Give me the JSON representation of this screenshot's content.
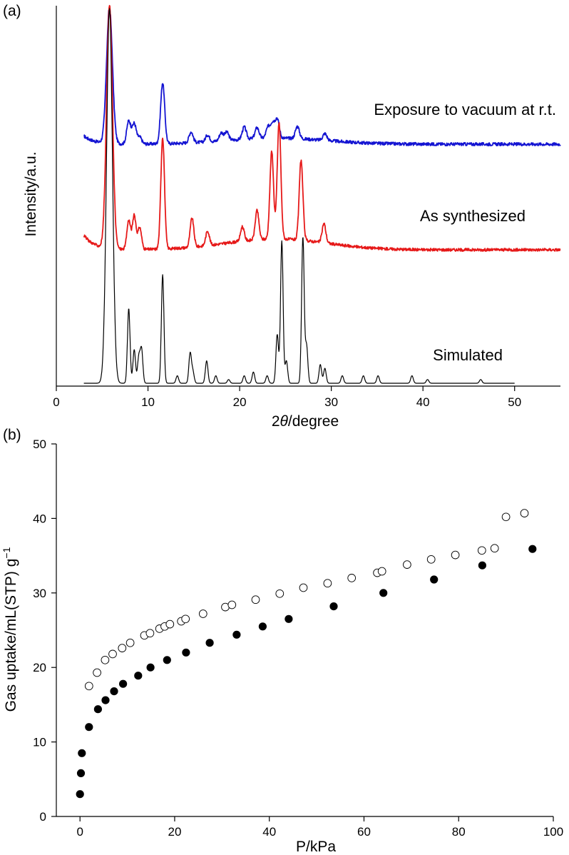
{
  "chart_data": [
    {
      "panel_label": "(a)",
      "type": "line",
      "xlabel": "2θ/degree",
      "xlabel_parts": {
        "var": "θ",
        "prefix": "2",
        "suffix": "/degree"
      },
      "ylabel": "Intensity/a.u.",
      "xlim": [
        0,
        55
      ],
      "xticks": [
        "0",
        "10",
        "20",
        "30",
        "40",
        "50"
      ],
      "yticks": [],
      "series": [
        {
          "name": "Exposure to vacuum at r.t.",
          "color": "#1414d2",
          "peaks": [
            [
              5.8,
              1.0
            ],
            [
              7.9,
              0.17
            ],
            [
              8.5,
              0.15
            ],
            [
              9.1,
              0.05
            ],
            [
              11.6,
              0.45
            ],
            [
              14.7,
              0.08
            ],
            [
              16.5,
              0.05
            ],
            [
              18.0,
              0.06
            ],
            [
              18.6,
              0.06
            ],
            [
              20.5,
              0.09
            ],
            [
              21.9,
              0.08
            ],
            [
              23.1,
              0.08
            ],
            [
              23.6,
              0.11
            ],
            [
              24.1,
              0.14
            ],
            [
              26.3,
              0.09
            ],
            [
              29.3,
              0.05
            ]
          ]
        },
        {
          "name": "As synthesized",
          "color": "#e61919",
          "peaks": [
            [
              5.8,
              1.0
            ],
            [
              7.9,
              0.12
            ],
            [
              8.5,
              0.14
            ],
            [
              9.1,
              0.09
            ],
            [
              11.6,
              0.46
            ],
            [
              14.8,
              0.12
            ],
            [
              16.5,
              0.06
            ],
            [
              20.3,
              0.06
            ],
            [
              21.9,
              0.12
            ],
            [
              23.5,
              0.36
            ],
            [
              24.3,
              0.48
            ],
            [
              26.7,
              0.33
            ],
            [
              29.2,
              0.08
            ]
          ]
        },
        {
          "name": "Simulated",
          "color": "#000000",
          "peaks": [
            [
              5.8,
              1.0
            ],
            [
              7.9,
              0.2
            ],
            [
              8.5,
              0.09
            ],
            [
              9.0,
              0.07
            ],
            [
              9.3,
              0.09
            ],
            [
              11.6,
              0.29
            ],
            [
              13.2,
              0.02
            ],
            [
              14.6,
              0.08
            ],
            [
              14.9,
              0.03
            ],
            [
              16.4,
              0.06
            ],
            [
              17.4,
              0.02
            ],
            [
              18.8,
              0.01
            ],
            [
              20.5,
              0.02
            ],
            [
              21.5,
              0.03
            ],
            [
              23.0,
              0.02
            ],
            [
              24.1,
              0.13
            ],
            [
              24.6,
              0.38
            ],
            [
              25.1,
              0.06
            ],
            [
              26.9,
              0.39
            ],
            [
              27.3,
              0.1
            ],
            [
              28.8,
              0.05
            ],
            [
              29.3,
              0.04
            ],
            [
              31.2,
              0.02
            ],
            [
              33.5,
              0.02
            ],
            [
              35.1,
              0.02
            ],
            [
              38.8,
              0.02
            ],
            [
              40.5,
              0.01
            ],
            [
              46.3,
              0.01
            ]
          ]
        }
      ]
    },
    {
      "panel_label": "(b)",
      "type": "scatter",
      "xlabel": "P/kPa",
      "ylabel": "Gas uptake/mL(STP) g",
      "ylabel_sup": "−1",
      "xlim": [
        -5,
        100
      ],
      "ylim": [
        0,
        50
      ],
      "xticks": [
        "0",
        "20",
        "40",
        "60",
        "80",
        "100"
      ],
      "yticks": [
        "0",
        "10",
        "20",
        "30",
        "40",
        "50"
      ],
      "series": [
        {
          "marker": "open-circle",
          "x": [
            1.9,
            3.6,
            5.3,
            6.9,
            8.9,
            10.6,
            13.6,
            14.8,
            16.8,
            17.9,
            19.0,
            21.4,
            22.3,
            26.0,
            30.7,
            32.1,
            37.1,
            42.2,
            47.2,
            52.3,
            57.4,
            62.8,
            63.8,
            69.1,
            74.2,
            79.3,
            84.9,
            87.6,
            90.0,
            93.9
          ],
          "y": [
            17.5,
            19.3,
            21.0,
            21.8,
            22.6,
            23.3,
            24.3,
            24.6,
            25.2,
            25.5,
            25.8,
            26.2,
            26.5,
            27.2,
            28.1,
            28.4,
            29.1,
            29.9,
            30.7,
            31.3,
            32.0,
            32.7,
            32.9,
            33.8,
            34.5,
            35.1,
            35.7,
            36.0,
            40.2,
            40.7
          ]
        },
        {
          "marker": "filled-circle",
          "x": [
            0.0,
            0.2,
            0.4,
            1.9,
            3.8,
            5.4,
            7.2,
            9.1,
            12.3,
            14.9,
            18.4,
            22.4,
            27.4,
            33.1,
            38.6,
            44.1,
            53.6,
            64.1,
            74.8,
            85.0,
            95.6
          ],
          "y": [
            3.0,
            5.8,
            8.5,
            12.0,
            14.4,
            15.6,
            16.8,
            17.8,
            18.9,
            20.0,
            21.0,
            22.0,
            23.3,
            24.4,
            25.5,
            26.5,
            28.2,
            30.0,
            31.8,
            33.7,
            35.9
          ]
        }
      ]
    }
  ]
}
